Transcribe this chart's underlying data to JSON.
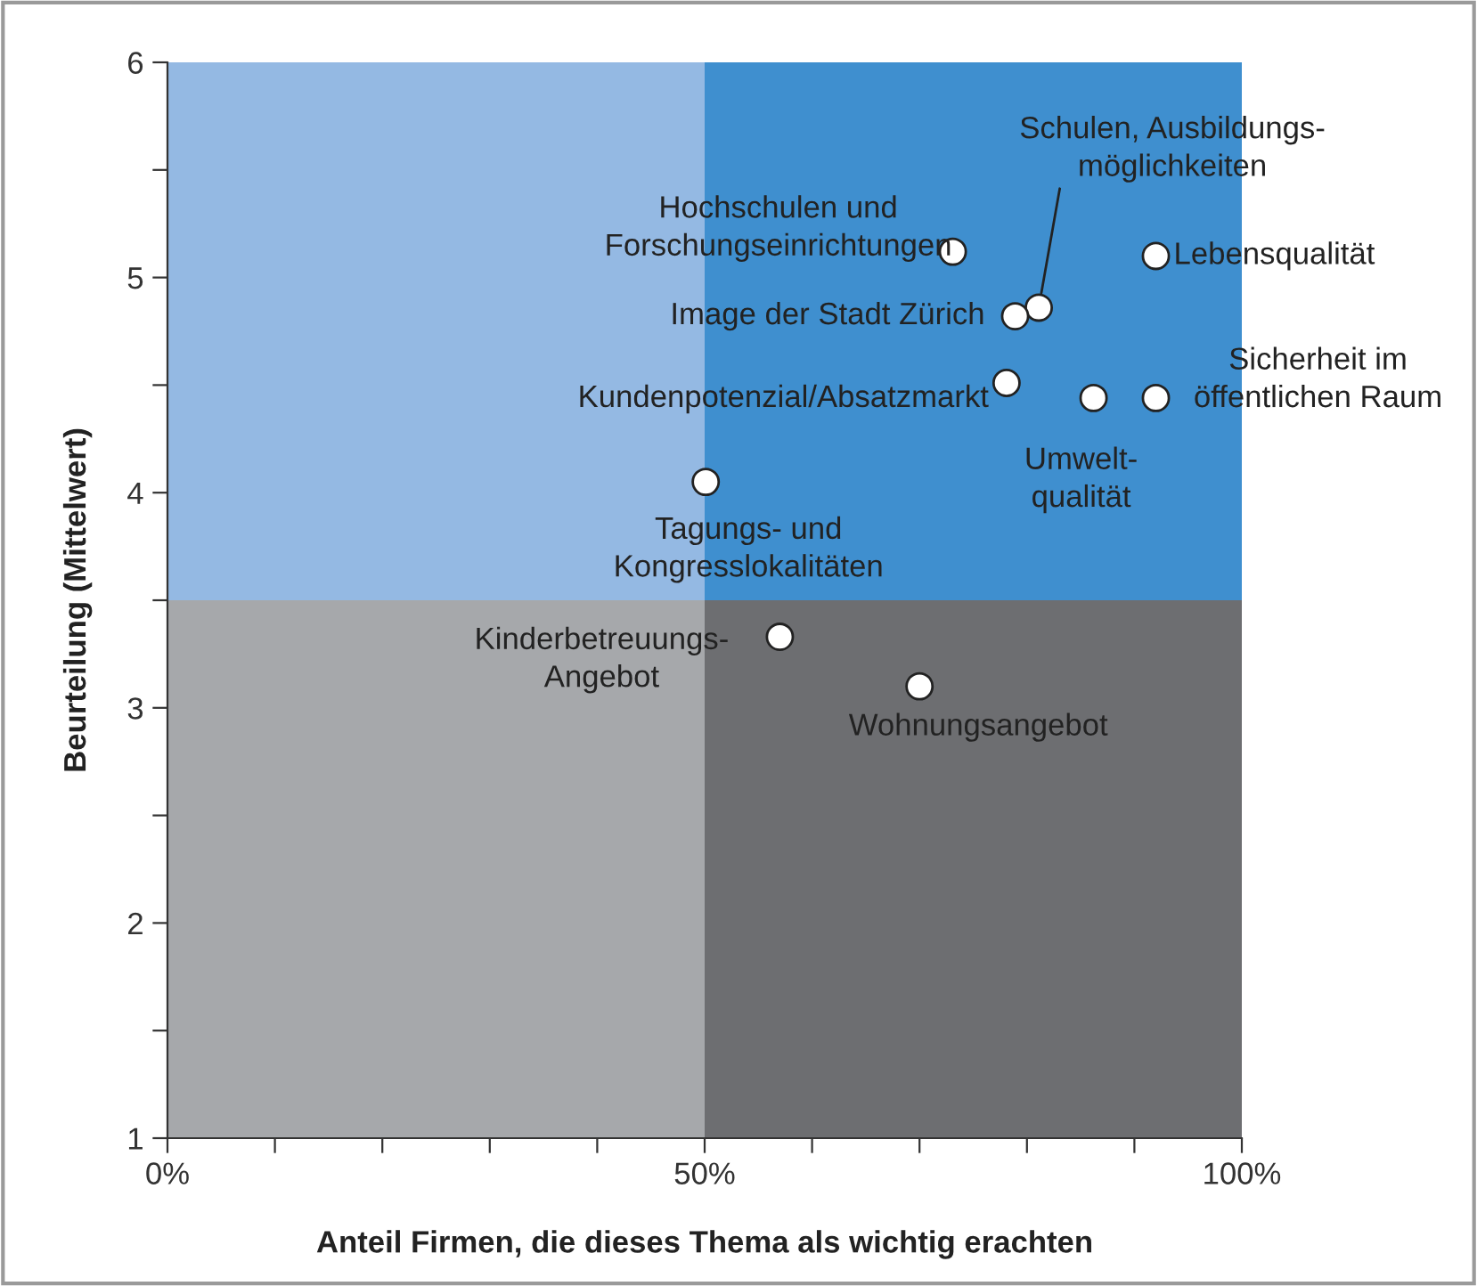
{
  "chart_data": {
    "type": "scatter",
    "xlabel": "Anteil Firmen, die dieses Thema als wichtig erachten",
    "ylabel": "Beurteilung (Mittelwert)",
    "x": [
      73.1,
      81.1,
      78.9,
      92.0,
      78.1,
      86.2,
      92.0,
      50.1,
      57.0,
      70.0
    ],
    "series": [
      {
        "color": "#ffffff",
        "values": [
          5.12,
          4.86,
          4.82,
          5.1,
          4.51,
          4.44,
          4.44,
          4.05,
          3.33,
          3.1
        ]
      }
    ],
    "marker": "circle",
    "xlim": [
      0,
      100
    ],
    "xticks": [
      {
        "value": 0,
        "label": "0%"
      },
      {
        "value": 10,
        "label": null
      },
      {
        "value": 20,
        "label": null
      },
      {
        "value": 30,
        "label": null
      },
      {
        "value": 40,
        "label": null
      },
      {
        "value": 50,
        "label": "50%"
      },
      {
        "value": 60,
        "label": null
      },
      {
        "value": 70,
        "label": null
      },
      {
        "value": 80,
        "label": null
      },
      {
        "value": 90,
        "label": null
      },
      {
        "value": 100,
        "label": "100%"
      }
    ],
    "ylim": [
      1,
      6
    ],
    "yticks": [
      1,
      {
        "value": 1.5,
        "label": null
      },
      2,
      {
        "value": 2.5,
        "label": null
      },
      3,
      {
        "value": 3.5,
        "label": null
      },
      4,
      {
        "value": 4.5,
        "label": null
      },
      5,
      {
        "value": 5.5,
        "label": null
      },
      6
    ],
    "grid": false,
    "legend": false,
    "annotations": [
      {
        "text": "Hochschulen und\nForschungseinrichtungen",
        "x": 73.1,
        "y": 5.12
      },
      {
        "text": "Schulen, Ausbildungs-\nmöglichkeiten",
        "x": 81.1,
        "y": 4.86
      },
      {
        "text": "Image der Stadt Zürich",
        "x": 78.9,
        "y": 4.82
      },
      {
        "text": "Lebensqualität",
        "x": 92.0,
        "y": 5.1
      },
      {
        "text": "Kundenpotenzial/Absatzmarkt",
        "x": 78.1,
        "y": 4.51
      },
      {
        "text": "Umwelt-\nqualität",
        "x": 86.2,
        "y": 4.44
      },
      {
        "text": "Sicherheit im\nöffentlichen Raum",
        "x": 92.0,
        "y": 4.44
      },
      {
        "text": "Tagungs- und\nKongresslokalitäten",
        "x": 50.1,
        "y": 4.05
      },
      {
        "text": "Kinderbetreuungs-\nAngebot",
        "x": 57.0,
        "y": 3.33
      },
      {
        "text": "Wohnungsangebot",
        "x": 70.0,
        "y": 3.1
      }
    ]
  }
}
